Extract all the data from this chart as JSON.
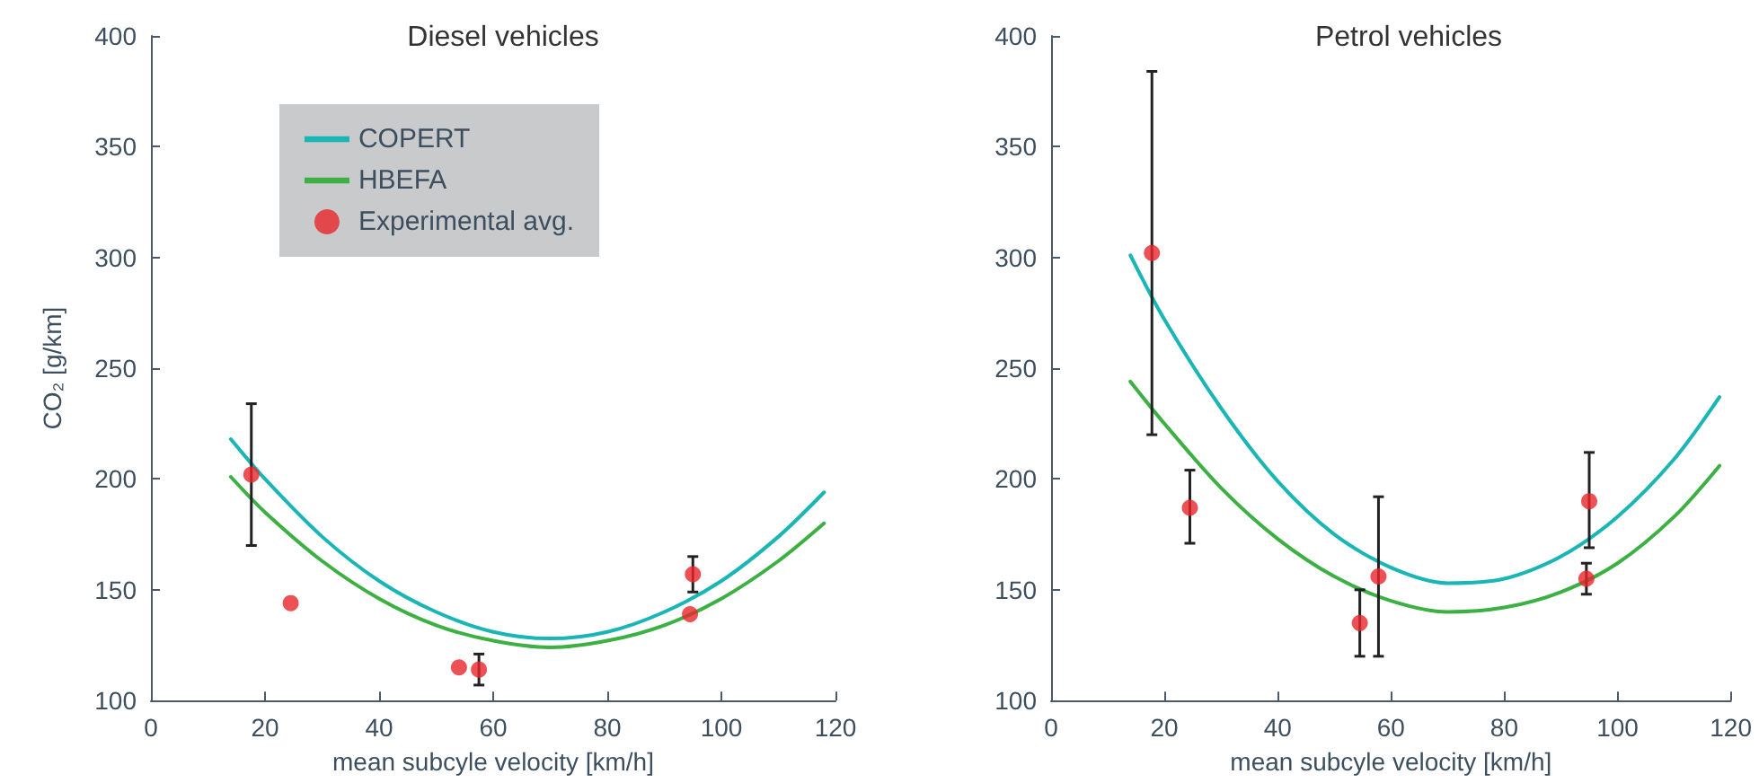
{
  "chart_data": [
    {
      "type": "line",
      "title": "Diesel vehicles",
      "xlabel": "mean subcyle velocity [km/h]",
      "ylabel": "CO₂ [g/km]",
      "xlim": [
        0,
        120
      ],
      "xticks": [
        0,
        20,
        40,
        60,
        80,
        100,
        120
      ],
      "ylim": [
        100,
        400
      ],
      "yticks": [
        100,
        150,
        200,
        250,
        300,
        350,
        400
      ],
      "grid": false,
      "legend": "top",
      "series": [
        {
          "name": "COPERT",
          "color": "#1ab5b5",
          "x": [
            14,
            20,
            30,
            40,
            50,
            60,
            70,
            80,
            90,
            100,
            110,
            118
          ],
          "values": [
            218,
            200,
            174,
            154,
            140,
            131,
            128,
            131,
            140,
            154,
            174,
            194
          ]
        },
        {
          "name": "HBEFA",
          "color": "#3cb043",
          "x": [
            14,
            20,
            30,
            40,
            50,
            60,
            70,
            80,
            90,
            100,
            110,
            118
          ],
          "values": [
            201,
            185,
            163,
            146,
            134,
            127,
            124,
            127,
            134,
            146,
            163,
            180
          ]
        },
        {
          "name": "Experimental avg.",
          "type": "scatter",
          "marker": "circle",
          "color": "#e8262a",
          "x": [
            17.6,
            24.5,
            54,
            57.5,
            95,
            94.5
          ],
          "values": [
            202,
            144,
            115,
            114,
            157,
            139
          ],
          "errors": [
            [
              170,
              234
            ],
            null,
            null,
            [
              107,
              121
            ],
            [
              149,
              165
            ],
            null
          ]
        }
      ]
    },
    {
      "type": "line",
      "title": "Petrol vehicles",
      "xlabel": "mean subcyle velocity [km/h]",
      "xlim": [
        0,
        120
      ],
      "xticks": [
        0,
        20,
        40,
        60,
        80,
        100,
        120
      ],
      "ylim": [
        100,
        400
      ],
      "yticks": [
        100,
        150,
        200,
        250,
        300,
        350,
        400
      ],
      "grid": false,
      "series": [
        {
          "color": "#1ab5b5",
          "x": [
            14,
            20,
            30,
            40,
            50,
            60,
            70,
            80,
            90,
            100,
            110,
            118
          ],
          "values": [
            301,
            272,
            232,
            199,
            175,
            160,
            153,
            155,
            165,
            183,
            209,
            237
          ]
        },
        {
          "color": "#3cb043",
          "x": [
            14,
            20,
            30,
            40,
            50,
            60,
            70,
            80,
            90,
            100,
            110,
            118
          ],
          "values": [
            244,
            225,
            196,
            173,
            156,
            145,
            140,
            142,
            149,
            162,
            183,
            206
          ]
        },
        {
          "type": "scatter",
          "marker": "circle",
          "color": "#e8262a",
          "x": [
            17.8,
            24.5,
            54.5,
            57.8,
            95,
            94.5
          ],
          "values": [
            302,
            187,
            135,
            156,
            190,
            155
          ],
          "errors": [
            [
              220,
              384
            ],
            [
              171,
              204
            ],
            [
              120,
              150
            ],
            [
              120,
              192
            ],
            [
              169,
              212
            ],
            [
              148,
              162
            ]
          ]
        }
      ]
    }
  ]
}
